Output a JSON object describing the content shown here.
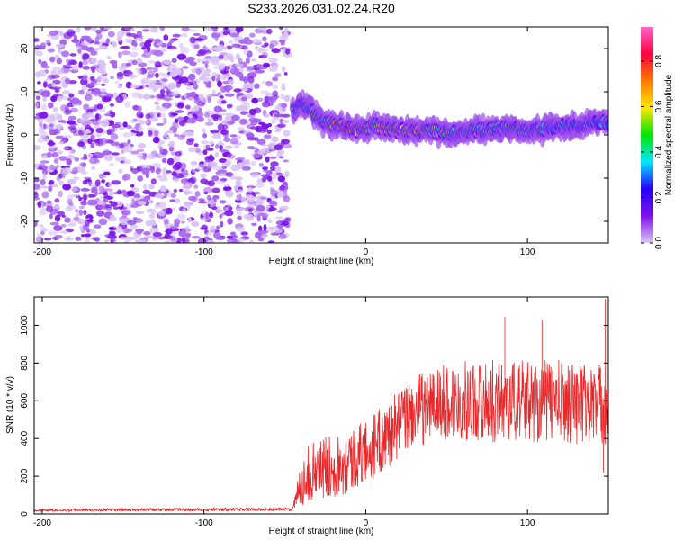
{
  "title": "S233.2026.031.02.24.R20",
  "colorbar": {
    "label": "Normalized spectral amplitude",
    "range": [
      0,
      0.95
    ],
    "ticks": [
      0,
      0.2,
      0.4,
      0.6,
      0.8
    ],
    "tick_labels": [
      "0.0",
      "0.2",
      "0.4",
      "0.6",
      "0.8"
    ],
    "colors": [
      "#ddc6f7",
      "#7b12e8",
      "#2a00ff",
      "#00e6ff",
      "#00e600",
      "#ffe600",
      "#ff7a00",
      "#ff0040",
      "#ff66cc"
    ]
  },
  "chart_data": [
    {
      "type": "heatmap",
      "title": "S233.2026.031.02.24.R20",
      "xlabel": "Height of straight line (km)",
      "ylabel": "Frequency (Hz)",
      "xlim": [
        -205,
        150
      ],
      "ylim": [
        -25,
        25
      ],
      "xticks": [
        -200,
        -100,
        0,
        100
      ],
      "xtick_labels": [
        "-200",
        "-100",
        "0",
        "100"
      ],
      "yticks": [
        -20,
        -10,
        0,
        10,
        20
      ],
      "ytick_labels": [
        "-20",
        "-10",
        "0",
        "10",
        "20"
      ],
      "noise_region_x": [
        -205,
        -48
      ],
      "ridge": {
        "x": [
          -45,
          -40,
          -35,
          -30,
          -25,
          -20,
          -15,
          -10,
          -5,
          0,
          5,
          10,
          20,
          30,
          40,
          50,
          60,
          70,
          80,
          90,
          100,
          110,
          120,
          130,
          140,
          150
        ],
        "freq": [
          5.5,
          7.5,
          6.0,
          4.0,
          3.0,
          2.5,
          2.0,
          1.5,
          1.0,
          1.2,
          2.5,
          1.5,
          1.0,
          1.0,
          1.0,
          0.5,
          0.5,
          1.0,
          1.5,
          1.5,
          1.0,
          1.5,
          2.0,
          2.0,
          2.5,
          3.0
        ],
        "peak_amplitude": [
          0.5,
          0.45,
          0.5,
          0.55,
          0.6,
          0.7,
          0.8,
          0.85,
          0.8,
          0.75,
          0.6,
          0.7,
          0.75,
          0.7,
          0.6,
          0.55,
          0.5,
          0.5,
          0.45,
          0.5,
          0.5,
          0.45,
          0.4,
          0.45,
          0.4,
          0.4
        ]
      }
    },
    {
      "type": "line",
      "xlabel": "Height of straight line (km)",
      "ylabel": "SNR (10 * v/v)",
      "xlim": [
        -205,
        150
      ],
      "ylim": [
        0,
        1150
      ],
      "xticks": [
        -200,
        -100,
        0,
        100
      ],
      "xtick_labels": [
        "-200",
        "-100",
        "0",
        "100"
      ],
      "yticks": [
        0,
        200,
        400,
        600,
        800,
        1000
      ],
      "ytick_labels": [
        "0",
        "200",
        "400",
        "600",
        "800",
        "1000"
      ],
      "color": "#e8282a",
      "envelope": {
        "x": [
          -205,
          -45,
          -40,
          -35,
          -30,
          -20,
          -10,
          0,
          10,
          20,
          30,
          40,
          60,
          80,
          100,
          120,
          140,
          150
        ],
        "mean": [
          20,
          25,
          160,
          220,
          230,
          260,
          280,
          330,
          390,
          470,
          540,
          580,
          600,
          600,
          600,
          600,
          580,
          580
        ],
        "spread": [
          12,
          15,
          120,
          150,
          160,
          170,
          170,
          170,
          180,
          180,
          190,
          200,
          210,
          220,
          220,
          220,
          220,
          220
        ]
      },
      "peaks": [
        {
          "x": 148,
          "y": 1140
        },
        {
          "x": 86,
          "y": 1045
        },
        {
          "x": 109,
          "y": 1030
        },
        {
          "x": 147,
          "y": 220
        }
      ]
    }
  ]
}
